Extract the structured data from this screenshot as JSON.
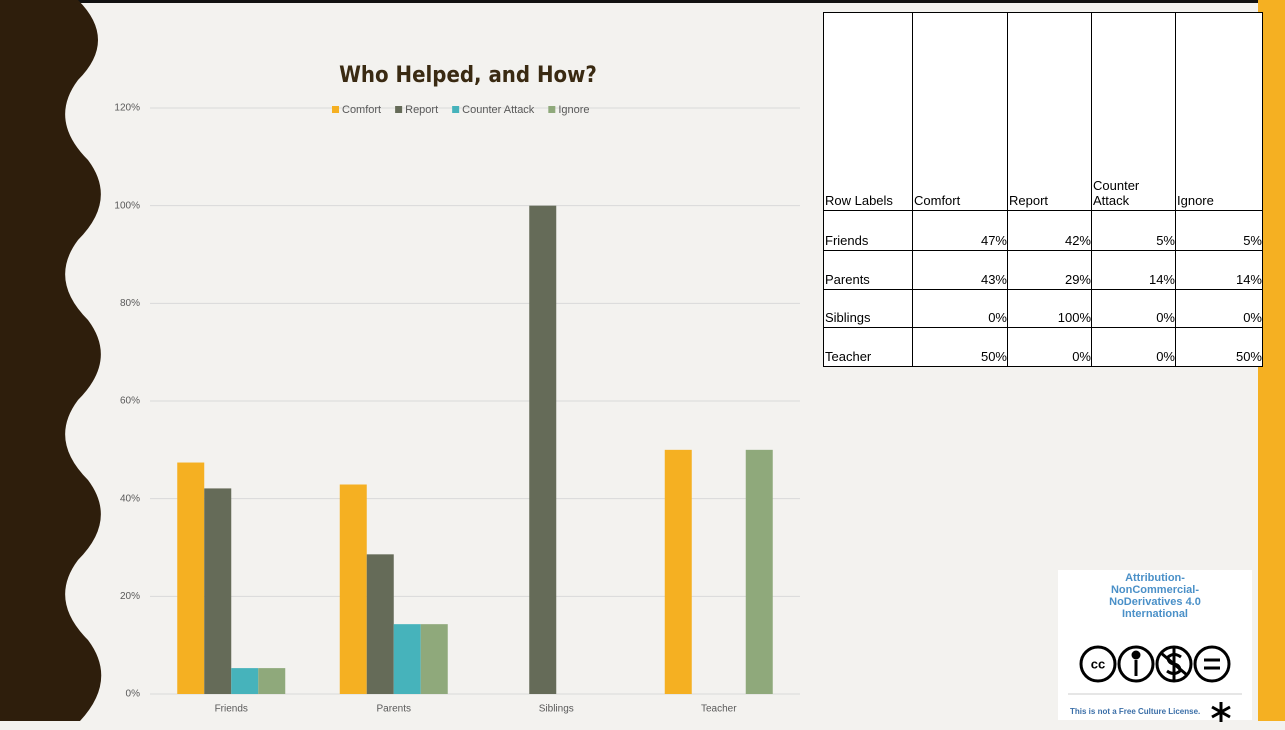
{
  "chart_data": {
    "type": "bar",
    "title": "Who Helped, and How?",
    "categories": [
      "Friends",
      "Parents",
      "Siblings",
      "Teacher"
    ],
    "series": [
      {
        "name": "Comfort",
        "color": "#f5b022",
        "values": [
          47.4,
          42.9,
          0,
          50
        ]
      },
      {
        "name": "Report",
        "color": "#656b58",
        "values": [
          42.1,
          28.6,
          100,
          0
        ]
      },
      {
        "name": "Counter Attack",
        "color": "#46b3bb",
        "values": [
          5.3,
          14.3,
          0,
          0
        ]
      },
      {
        "name": "Ignore",
        "color": "#8fa97b",
        "values": [
          5.3,
          14.3,
          0,
          50
        ]
      }
    ],
    "ylim": [
      0,
      120
    ],
    "yticks": [
      {
        "value": 0,
        "label": "0%"
      },
      {
        "value": 20,
        "label": "20%"
      },
      {
        "value": 40,
        "label": "40%"
      },
      {
        "value": 60,
        "label": "60%"
      },
      {
        "value": 80,
        "label": "80%"
      },
      {
        "value": 100,
        "label": "100%"
      },
      {
        "value": 120,
        "label": "120%"
      }
    ],
    "grid": true,
    "legend": "top"
  },
  "table": {
    "header": [
      "Row Labels",
      "Comfort",
      "Report",
      "Counter Attack",
      "Ignore"
    ],
    "rows": [
      [
        "Friends",
        "47%",
        "42%",
        "5%",
        "5%"
      ],
      [
        "Parents",
        "43%",
        "29%",
        "14%",
        "14%"
      ],
      [
        "Siblings",
        "0%",
        "100%",
        "0%",
        "0%"
      ],
      [
        "Teacher",
        "50%",
        "0%",
        "0%",
        "50%"
      ]
    ]
  },
  "license": {
    "title": "Attribution-NonCommercial-NoDerivatives 4.0 International",
    "icon": "cc",
    "note": "This is not a Free Culture License."
  }
}
